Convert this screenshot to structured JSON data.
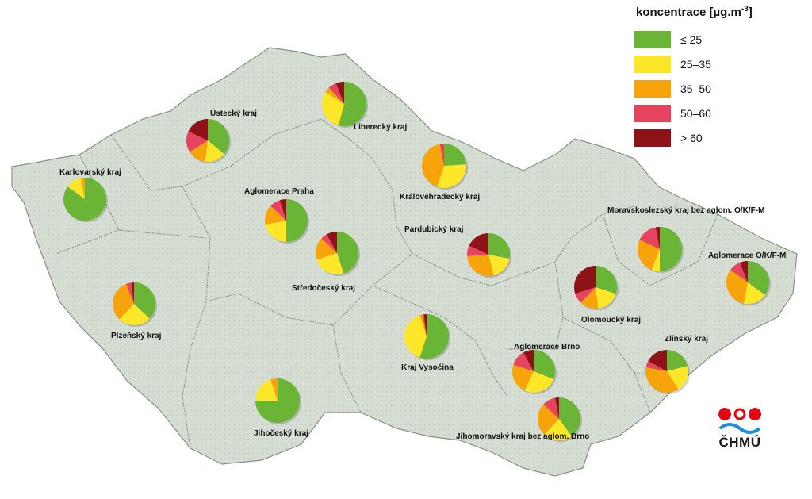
{
  "legend": {
    "title_prefix": "koncentrace [µg.m",
    "title_exp": "-3",
    "title_suffix": "]",
    "items": [
      {
        "label": "≤ 25",
        "color": "#6ab536"
      },
      {
        "label": "25–35",
        "color": "#fde728"
      },
      {
        "label": "35–50",
        "color": "#f7a40c"
      },
      {
        "label": "50–60",
        "color": "#e5435e"
      },
      {
        "label": "> 60",
        "color": "#8e1217"
      }
    ]
  },
  "regions": [
    {
      "id": "karlovarsky",
      "label": "Karlovarský kraj",
      "shares": [
        0.85,
        0.12,
        0.03,
        0,
        0
      ]
    },
    {
      "id": "ustecky",
      "label": "Ústecký kraj",
      "shares": [
        0.36,
        0.16,
        0.14,
        0.16,
        0.18
      ]
    },
    {
      "id": "liberecky",
      "label": "Liberecký kraj",
      "shares": [
        0.54,
        0.3,
        0.04,
        0.06,
        0.06
      ]
    },
    {
      "id": "kralovehradecky",
      "label": "Královéhradecký kraj",
      "shares": [
        0.24,
        0.31,
        0.42,
        0.03,
        0
      ]
    },
    {
      "id": "praha",
      "label": "Aglomerace Praha",
      "shares": [
        0.5,
        0.22,
        0.15,
        0.08,
        0.05
      ]
    },
    {
      "id": "stredocesky",
      "label": "Středočeský kraj",
      "shares": [
        0.45,
        0.25,
        0.17,
        0.05,
        0.08
      ]
    },
    {
      "id": "pardubicky",
      "label": "Pardubický kraj",
      "shares": [
        0.28,
        0.18,
        0.28,
        0.08,
        0.18
      ]
    },
    {
      "id": "moravskoslezsky",
      "label": "Moravskoslezský kraj bez aglom. O/K/F-M",
      "shares": [
        0.5,
        0.06,
        0.26,
        0.15,
        0.03
      ]
    },
    {
      "id": "ostrava",
      "label": "Aglomerace O/K/F-M",
      "shares": [
        0.35,
        0.18,
        0.32,
        0.09,
        0.06
      ]
    },
    {
      "id": "olomoucky",
      "label": "Olomoucký kraj",
      "shares": [
        0.3,
        0.18,
        0.14,
        0.08,
        0.3
      ]
    },
    {
      "id": "plzensky",
      "label": "Plzeňský kraj",
      "shares": [
        0.37,
        0.25,
        0.32,
        0.04,
        0.02
      ]
    },
    {
      "id": "vysocina",
      "label": "Kraj Vysočina",
      "shares": [
        0.55,
        0.4,
        0.02,
        0.01,
        0.02
      ]
    },
    {
      "id": "brno",
      "label": "Aglomerace Brno",
      "shares": [
        0.31,
        0.26,
        0.23,
        0.12,
        0.08
      ]
    },
    {
      "id": "zlinsky",
      "label": "Zlínský kraj",
      "shares": [
        0.21,
        0.2,
        0.37,
        0.05,
        0.17
      ]
    },
    {
      "id": "jihocesky",
      "label": "Jihočeský kraj",
      "shares": [
        0.75,
        0.2,
        0.05,
        0,
        0
      ]
    },
    {
      "id": "jihomoravsky",
      "label": "Jihomoravský kraj bez aglom. Brno",
      "shares": [
        0.4,
        0.22,
        0.25,
        0.1,
        0.03
      ]
    }
  ],
  "logo": {
    "text": "ČHMÚ"
  }
}
